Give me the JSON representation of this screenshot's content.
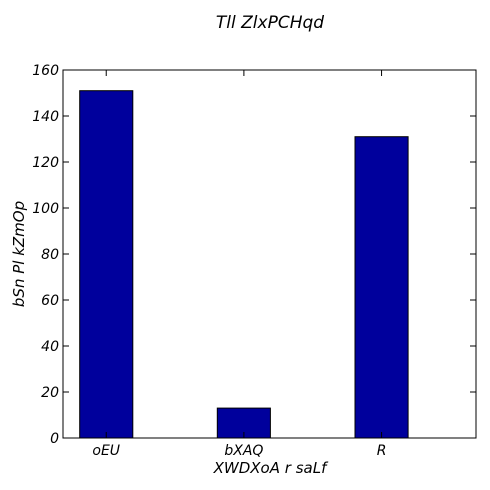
{
  "chart_data": {
    "type": "bar",
    "title": "Tll ZlxPCHqd",
    "xlabel": "XWDXoA r saLf",
    "ylabel": "bSn Pl kZmOp",
    "categories": [
      "oEU",
      "bXAQ",
      "R"
    ],
    "values": [
      151,
      13,
      131
    ],
    "ylim": [
      0,
      160
    ],
    "yticks": [
      0,
      20,
      40,
      60,
      80,
      100,
      120,
      140,
      160
    ],
    "bar_color": "#00009c",
    "grid": false,
    "legend": "none"
  }
}
